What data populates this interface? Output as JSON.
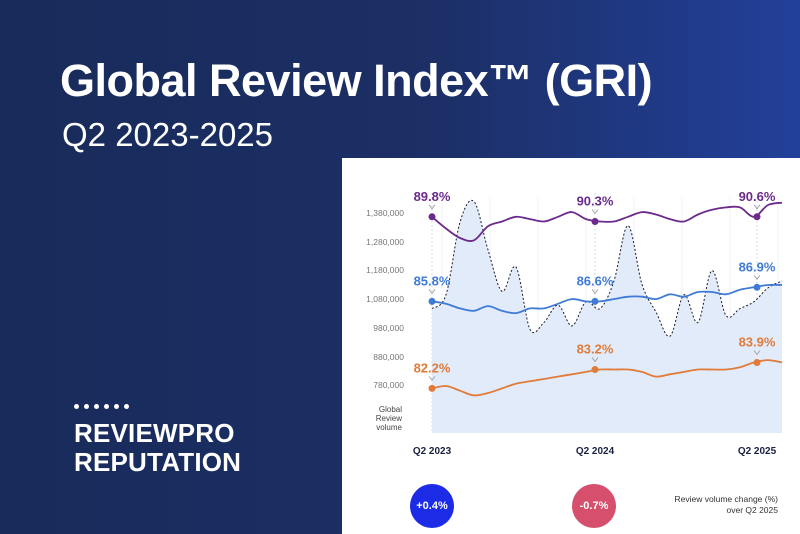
{
  "header": {
    "title": "Global Review Index™ (GRI)",
    "subtitle": "Q2 2023-2025"
  },
  "logo": {
    "line1": "REVIEWPRO",
    "line2": "REPUTATION"
  },
  "chart_data": {
    "type": "line",
    "x_labels": [
      "Q2 2023",
      "Q2 2024",
      "Q2 2025"
    ],
    "y_ticks": [
      "1,380,000",
      "1,280,000",
      "1,180,000",
      "1,080,000",
      "980,000",
      "880,000",
      "780,000"
    ],
    "y_axis_label": [
      "Global",
      "Review",
      "volume"
    ],
    "ylim": [
      720000,
      1400000
    ],
    "volume": [
      1080000,
      1120000,
      1330000,
      1390000,
      1250000,
      1130000,
      1200000,
      1020000,
      1040000,
      1090000,
      1030000,
      1100000,
      1080000,
      1160000,
      1320000,
      1150000,
      1070000,
      1000000,
      1120000,
      1040000,
      1190000,
      1060000,
      1080000,
      1100000,
      1140000,
      1160000
    ],
    "series": [
      {
        "color": "#6b2a8c",
        "labels": [
          "89.8%",
          "90.3%",
          "90.6%"
        ],
        "path": [
          0.08,
          0.13,
          0.17,
          0.18,
          0.12,
          0.1,
          0.08,
          0.09,
          0.1,
          0.08,
          0.06,
          0.09,
          0.1,
          0.1,
          0.08,
          0.06,
          0.07,
          0.09,
          0.1,
          0.07,
          0.05,
          0.04,
          0.04,
          0.08,
          0.03,
          0.02
        ]
      },
      {
        "color": "#3f7bd6",
        "labels": [
          "85.8%",
          "86.6%",
          "86.9%"
        ],
        "path": [
          0.44,
          0.45,
          0.47,
          0.48,
          0.46,
          0.48,
          0.49,
          0.47,
          0.47,
          0.45,
          0.43,
          0.44,
          0.44,
          0.43,
          0.42,
          0.42,
          0.43,
          0.41,
          0.42,
          0.4,
          0.4,
          0.41,
          0.39,
          0.38,
          0.37,
          0.37
        ]
      },
      {
        "color": "#e07b39",
        "labels": [
          "82.2%",
          "83.2%",
          "83.9%"
        ],
        "path": [
          0.81,
          0.8,
          0.82,
          0.84,
          0.83,
          0.81,
          0.79,
          0.78,
          0.77,
          0.76,
          0.75,
          0.74,
          0.73,
          0.73,
          0.73,
          0.74,
          0.76,
          0.75,
          0.74,
          0.73,
          0.73,
          0.73,
          0.72,
          0.7,
          0.69,
          0.7
        ]
      }
    ],
    "changes": [
      {
        "value": "+0.4%",
        "color": "#1b2be6"
      },
      {
        "value": "-0.7%",
        "color": "#d6506e"
      }
    ],
    "change_note": [
      "Review volume change (%)",
      "over Q2 2025"
    ]
  }
}
